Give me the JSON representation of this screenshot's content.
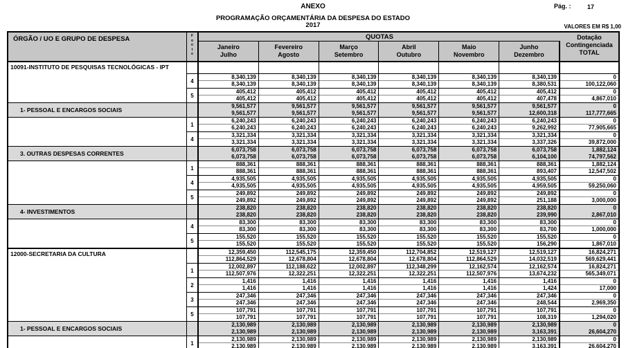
{
  "page": {
    "anexo": "ANEXO",
    "pag_label": "Pág. :",
    "pag_number": "17",
    "title": "PROGRAMAÇÃO ORÇAMENTÁRIA DA DESPESA DO ESTADO",
    "year": "2017",
    "values_note": "VALORES EM R$ 1,00"
  },
  "colors": {
    "header_bg": "#c6c6c6",
    "group_row_bg": "#d9d9d9",
    "border": "#000000"
  },
  "table": {
    "org_header": "ÓRGÃO / UO  E GRUPO DE DESPESA",
    "fonte_letters": [
      "F",
      "o",
      "n",
      "t",
      "e"
    ],
    "quotas_label": "QUOTAS",
    "month_columns": [
      [
        "Janeiro",
        "Julho"
      ],
      [
        "Fevereiro",
        "Agosto"
      ],
      [
        "Março",
        "Setembro"
      ],
      [
        "Abril",
        "Outubro"
      ],
      [
        "Maio",
        "Novembro"
      ],
      [
        "Junho",
        "Dezembro"
      ]
    ],
    "total_header": [
      "Dotação",
      "Contingenciada",
      "TOTAL"
    ],
    "rows": [
      {
        "type": "org_empty",
        "label": "10091-INSTITUTO DE PESQUISAS TECNOLÓGICAS - IPT"
      },
      {
        "type": "fonte",
        "fonte": "4",
        "line1": [
          "8,340,139",
          "8,340,139",
          "8,340,139",
          "8,340,139",
          "8,340,139",
          "8,340,139",
          "0"
        ],
        "line2": [
          "8,340,139",
          "8,340,139",
          "8,340,139",
          "8,340,139",
          "8,340,139",
          "8,380,531",
          "100,122,060"
        ]
      },
      {
        "type": "fonte",
        "fonte": "5",
        "line1": [
          "405,412",
          "405,412",
          "405,412",
          "405,412",
          "405,412",
          "405,412",
          "0"
        ],
        "line2": [
          "405,412",
          "405,412",
          "405,412",
          "405,412",
          "405,412",
          "407,478",
          "4,867,010"
        ]
      },
      {
        "type": "group",
        "label": "1- PESSOAL E ENCARGOS SOCIAIS",
        "line1": [
          "9,561,577",
          "9,561,577",
          "9,561,577",
          "9,561,577",
          "9,561,577",
          "9,561,577",
          "0"
        ],
        "line2": [
          "9,561,577",
          "9,561,577",
          "9,561,577",
          "9,561,577",
          "9,561,577",
          "12,600,318",
          "117,777,665"
        ]
      },
      {
        "type": "fonte",
        "fonte": "1",
        "line1": [
          "6,240,243",
          "6,240,243",
          "6,240,243",
          "6,240,243",
          "6,240,243",
          "6,240,243",
          "0"
        ],
        "line2": [
          "6,240,243",
          "6,240,243",
          "6,240,243",
          "6,240,243",
          "6,240,243",
          "9,262,992",
          "77,905,665"
        ]
      },
      {
        "type": "fonte",
        "fonte": "4",
        "line1": [
          "3,321,334",
          "3,321,334",
          "3,321,334",
          "3,321,334",
          "3,321,334",
          "3,321,334",
          "0"
        ],
        "line2": [
          "3,321,334",
          "3,321,334",
          "3,321,334",
          "3,321,334",
          "3,321,334",
          "3,337,326",
          "39,872,000"
        ]
      },
      {
        "type": "group",
        "label": "3. OUTRAS DESPESAS CORRENTES",
        "line1": [
          "6,073,758",
          "6,073,758",
          "6,073,758",
          "6,073,758",
          "6,073,758",
          "6,073,758",
          "1,882,124"
        ],
        "line2": [
          "6,073,758",
          "6,073,758",
          "6,073,758",
          "6,073,758",
          "6,073,758",
          "6,104,100",
          "74,797,562"
        ]
      },
      {
        "type": "fonte",
        "fonte": "1",
        "line1": [
          "888,361",
          "888,361",
          "888,361",
          "888,361",
          "888,361",
          "888,361",
          "1,882,124"
        ],
        "line2": [
          "888,361",
          "888,361",
          "888,361",
          "888,361",
          "888,361",
          "893,407",
          "12,547,502"
        ]
      },
      {
        "type": "fonte",
        "fonte": "4",
        "line1": [
          "4,935,505",
          "4,935,505",
          "4,935,505",
          "4,935,505",
          "4,935,505",
          "4,935,505",
          "0"
        ],
        "line2": [
          "4,935,505",
          "4,935,505",
          "4,935,505",
          "4,935,505",
          "4,935,505",
          "4,959,505",
          "59,250,060"
        ]
      },
      {
        "type": "fonte",
        "fonte": "5",
        "line1": [
          "249,892",
          "249,892",
          "249,892",
          "249,892",
          "249,892",
          "249,892",
          "0"
        ],
        "line2": [
          "249,892",
          "249,892",
          "249,892",
          "249,892",
          "249,892",
          "251,188",
          "3,000,000"
        ]
      },
      {
        "type": "group",
        "label": "4- INVESTIMENTOS",
        "line1": [
          "238,820",
          "238,820",
          "238,820",
          "238,820",
          "238,820",
          "238,820",
          "0"
        ],
        "line2": [
          "238,820",
          "238,820",
          "238,820",
          "238,820",
          "238,820",
          "239,990",
          "2,867,010"
        ]
      },
      {
        "type": "fonte",
        "fonte": "4",
        "line1": [
          "83,300",
          "83,300",
          "83,300",
          "83,300",
          "83,300",
          "83,300",
          "0"
        ],
        "line2": [
          "83,300",
          "83,300",
          "83,300",
          "83,300",
          "83,300",
          "83,700",
          "1,000,000"
        ]
      },
      {
        "type": "fonte",
        "fonte": "5",
        "line1": [
          "155,520",
          "155,520",
          "155,520",
          "155,520",
          "155,520",
          "155,520",
          "0"
        ],
        "line2": [
          "155,520",
          "155,520",
          "155,520",
          "155,520",
          "155,520",
          "156,290",
          "1,867,010"
        ]
      },
      {
        "type": "org",
        "label": "12000-SECRETARIA DA CULTURA",
        "line1": [
          "12,359,450",
          "112,545,175",
          "12,359,450",
          "112,704,852",
          "12,519,127",
          "12,519,127",
          "16,824,271"
        ],
        "line2": [
          "112,864,529",
          "12,678,804",
          "12,678,804",
          "12,678,804",
          "112,864,529",
          "14,032,519",
          "569,629,441"
        ]
      },
      {
        "type": "fonte",
        "fonte": "1",
        "line1": [
          "12,002,897",
          "112,188,622",
          "12,002,897",
          "112,348,299",
          "12,162,574",
          "12,162,574",
          "16,824,271"
        ],
        "line2": [
          "112,507,976",
          "12,322,251",
          "12,322,251",
          "12,322,251",
          "112,507,976",
          "13,674,232",
          "565,349,071"
        ]
      },
      {
        "type": "fonte",
        "fonte": "2",
        "line1": [
          "1,416",
          "1,416",
          "1,416",
          "1,416",
          "1,416",
          "1,416",
          "0"
        ],
        "line2": [
          "1,416",
          "1,416",
          "1,416",
          "1,416",
          "1,416",
          "1,424",
          "17,000"
        ]
      },
      {
        "type": "fonte",
        "fonte": "3",
        "line1": [
          "247,346",
          "247,346",
          "247,346",
          "247,346",
          "247,346",
          "247,346",
          "0"
        ],
        "line2": [
          "247,346",
          "247,346",
          "247,346",
          "247,346",
          "247,346",
          "248,544",
          "2,969,350"
        ]
      },
      {
        "type": "fonte",
        "fonte": "5",
        "line1": [
          "107,791",
          "107,791",
          "107,791",
          "107,791",
          "107,791",
          "107,791",
          "0"
        ],
        "line2": [
          "107,791",
          "107,791",
          "107,791",
          "107,791",
          "107,791",
          "108,319",
          "1,294,020"
        ]
      },
      {
        "type": "group",
        "label": "1- PESSOAL E ENCARGOS SOCIAIS",
        "line1": [
          "2,130,989",
          "2,130,989",
          "2,130,989",
          "2,130,989",
          "2,130,989",
          "2,130,989",
          "0"
        ],
        "line2": [
          "2,130,989",
          "2,130,989",
          "2,130,989",
          "2,130,989",
          "2,130,989",
          "3,163,391",
          "26,604,270"
        ]
      },
      {
        "type": "fonte",
        "fonte": "1",
        "line1": [
          "2,130,989",
          "2,130,989",
          "2,130,989",
          "2,130,989",
          "2,130,989",
          "2,130,989",
          "0"
        ],
        "line2": [
          "2,130,989",
          "2,130,989",
          "2,130,989",
          "2,130,989",
          "2,130,989",
          "3,163,391",
          "26,604,270"
        ]
      }
    ]
  }
}
